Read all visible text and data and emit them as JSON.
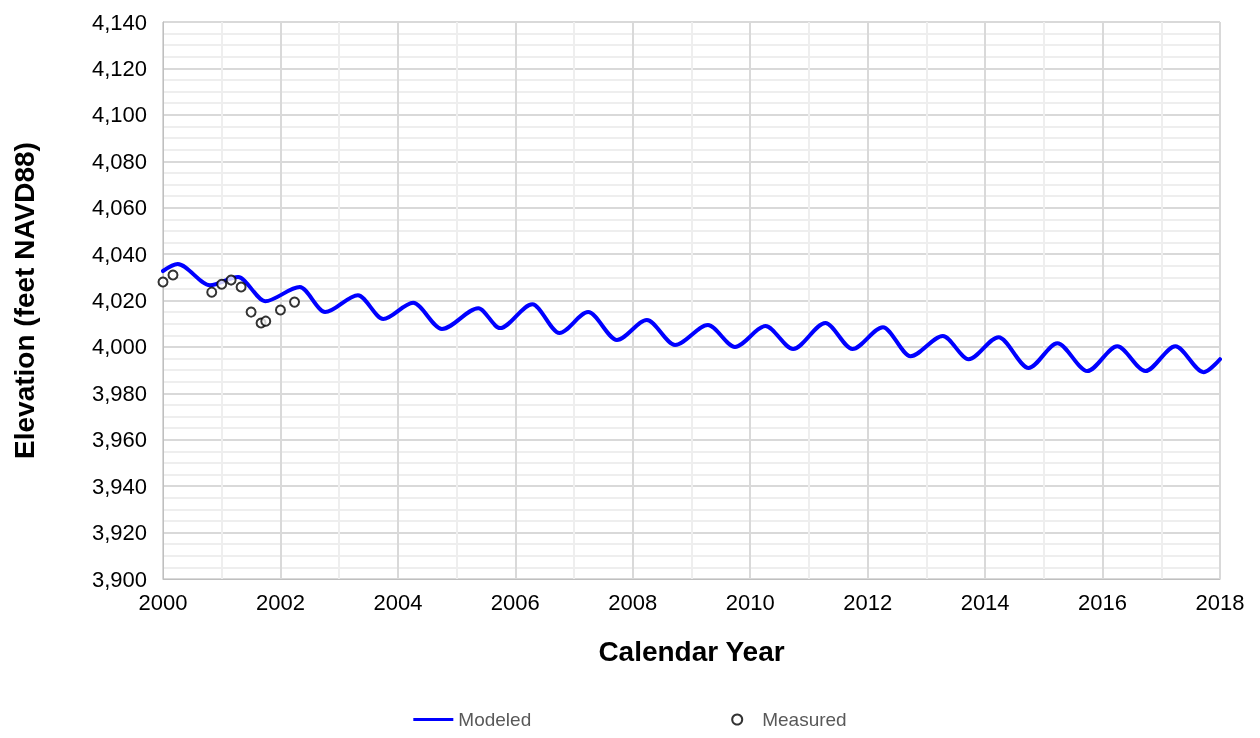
{
  "chart_data": {
    "type": "line",
    "xlabel": "Calendar Year",
    "ylabel": "Elevation (feet NAVD88)",
    "xlim": [
      2000,
      2018
    ],
    "xticks": [
      2000,
      2002,
      2004,
      2006,
      2008,
      2010,
      2012,
      2014,
      2016,
      2018
    ],
    "ylim": [
      3900,
      4140
    ],
    "yticks": [
      {
        "value": 3900,
        "label": "3,900"
      },
      {
        "value": 3920,
        "label": "3,920"
      },
      {
        "value": 3940,
        "label": "3,940"
      },
      {
        "value": 3960,
        "label": "3,960"
      },
      {
        "value": 3980,
        "label": "3,980"
      },
      {
        "value": 4000,
        "label": "4,000"
      },
      {
        "value": 4020,
        "label": "4,020"
      },
      {
        "value": 4040,
        "label": "4,040"
      },
      {
        "value": 4060,
        "label": "4,060"
      },
      {
        "value": 4080,
        "label": "4,080"
      },
      {
        "value": 4100,
        "label": "4,100"
      },
      {
        "value": 4120,
        "label": "4,120"
      },
      {
        "value": 4140,
        "label": "4,140"
      }
    ],
    "grid": true,
    "legend": "bottom",
    "series": [
      {
        "name": "Modeled",
        "type": "line",
        "color": "#0000ff",
        "marker": "none",
        "line_style": "solid",
        "x": [
          2000,
          2000.25,
          2000.8,
          2001.28,
          2001.74,
          2002.33,
          2002.76,
          2003.32,
          2003.75,
          2004.26,
          2004.75,
          2005.37,
          2005.74,
          2006.29,
          2006.75,
          2007.24,
          2007.73,
          2008.24,
          2008.72,
          2009.28,
          2009.74,
          2010.26,
          2010.73,
          2011.28,
          2011.74,
          2012.26,
          2012.73,
          2013.28,
          2013.72,
          2014.23,
          2014.74,
          2015.23,
          2015.74,
          2016.25,
          2016.73,
          2017.24,
          2017.72,
          2018
        ],
        "values": [
          4032.7,
          4035.7,
          4026.6,
          4030.1,
          4019.7,
          4025.8,
          4015,
          4022.3,
          4012,
          4019,
          4007.7,
          4016.7,
          4008.1,
          4018.4,
          4006,
          4015,
          4003,
          4011.6,
          4000.8,
          4009.4,
          4000,
          4009,
          3999.1,
          4010.3,
          3999.1,
          4008.5,
          3996,
          4004.7,
          3994.7,
          4004.2,
          3990.9,
          4001.6,
          3989.6,
          4000.3,
          3989.6,
          4000.3,
          3989.1,
          3994.7
        ]
      },
      {
        "name": "Measured",
        "type": "scatter",
        "color": "#000000",
        "marker": "circle",
        "x": [
          2000,
          2000.17,
          2000.83,
          2001,
          2001.16,
          2001.33,
          2001.5,
          2001.67,
          2001.75,
          2002,
          2002.24
        ],
        "values": [
          4028,
          4031,
          4023.6,
          4027,
          4028.8,
          4025.8,
          4015,
          4010.3,
          4011.1,
          4015.9,
          4019.3
        ]
      }
    ]
  }
}
